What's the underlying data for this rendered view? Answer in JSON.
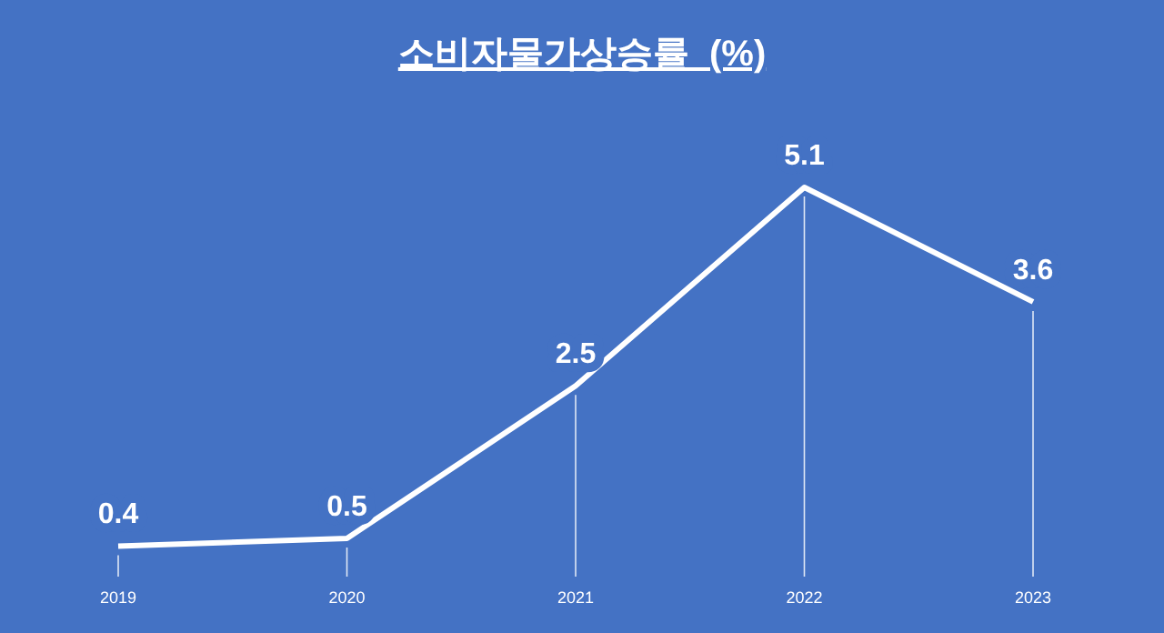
{
  "chart_data": {
    "type": "line",
    "title": "소비자물가상승률  (%)",
    "categories": [
      "2019",
      "2020",
      "2021",
      "2022",
      "2023"
    ],
    "series": [
      {
        "color": "#ffffff",
        "values": [
          0.4,
          0.5,
          2.5,
          5.1,
          3.6
        ]
      }
    ],
    "data_labels": true,
    "grid": "x",
    "tick_labels": "x"
  }
}
